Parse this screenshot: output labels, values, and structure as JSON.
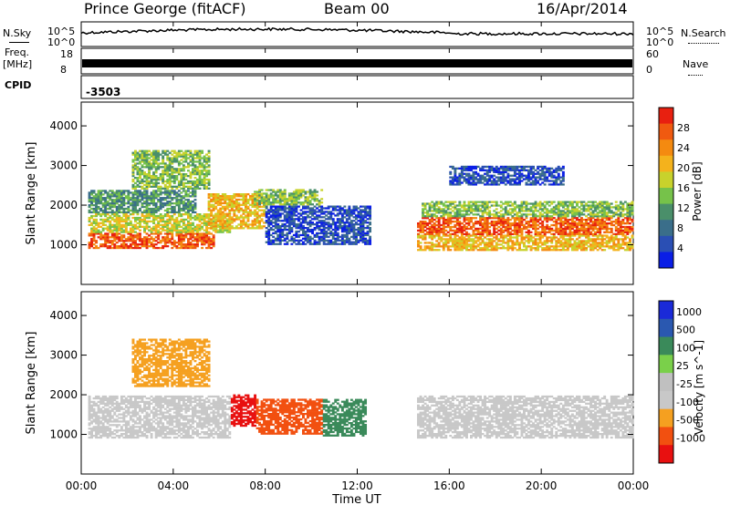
{
  "header": {
    "station": "Prince George (fitACF)",
    "beam": "Beam 00",
    "date": "16/Apr/2014"
  },
  "top_panels": {
    "nsky_label": "N.Sky",
    "nsearch_label": "N.Search",
    "noise_ticks_left": [
      "10^5",
      "10^0"
    ],
    "noise_ticks_right": [
      "10^5",
      "10^0"
    ],
    "freq_label_1": "Freq.",
    "freq_label_2": "[MHz]",
    "freq_ticks": [
      "18",
      "8"
    ],
    "nave_label": "Nave",
    "nave_ticks": [
      "60",
      "0"
    ],
    "cpid_label": "CPID",
    "cpid_value": "-3503"
  },
  "colors": {
    "power": [
      "#0a1ee6",
      "#2a4fb4",
      "#3a6e8a",
      "#4a8f6a",
      "#76c24a",
      "#c8d22c",
      "#f4b21c",
      "#f48a10",
      "#f05a10",
      "#e82010"
    ],
    "velocity": [
      "#e81010",
      "#f25010",
      "#f5a020",
      "#c8c8c8",
      "#c0c0c0",
      "#7ad04a",
      "#3a8a5a",
      "#2a58b0",
      "#1a2ad8"
    ]
  },
  "chart_data": [
    {
      "type": "heatmap",
      "name": "power",
      "ylabel": "Slant Range [km]",
      "ylim": [
        0,
        4600
      ],
      "yticks": [
        "1000",
        "2000",
        "3000",
        "4000"
      ],
      "colorbar_label": "Power [dB]",
      "colorbar_ticks": [
        "4",
        "8",
        "12",
        "16",
        "20",
        "24",
        "28"
      ],
      "x_hours": [
        0,
        24
      ],
      "echo_bands": [
        {
          "t0": 0.3,
          "t1": 5.8,
          "r0": 900,
          "r1": 1300,
          "level": 8
        },
        {
          "t0": 0.3,
          "t1": 6.5,
          "r0": 1300,
          "r1": 1800,
          "level": 5
        },
        {
          "t0": 0.3,
          "t1": 5.0,
          "r0": 1800,
          "r1": 2400,
          "level": 3
        },
        {
          "t0": 2.2,
          "t1": 5.6,
          "r0": 2400,
          "r1": 3400,
          "level": 4
        },
        {
          "t0": 5.5,
          "t1": 8.0,
          "r0": 1400,
          "r1": 2300,
          "level": 6
        },
        {
          "t0": 7.5,
          "t1": 10.5,
          "r0": 2000,
          "r1": 2400,
          "level": 4
        },
        {
          "t0": 8.0,
          "t1": 12.6,
          "r0": 1000,
          "r1": 2000,
          "level": 1
        },
        {
          "t0": 14.6,
          "t1": 24.0,
          "r0": 850,
          "r1": 1250,
          "level": 6
        },
        {
          "t0": 14.6,
          "t1": 24.0,
          "r0": 1250,
          "r1": 1700,
          "level": 8
        },
        {
          "t0": 14.8,
          "t1": 24.0,
          "r0": 1700,
          "r1": 2100,
          "level": 4
        },
        {
          "t0": 16.0,
          "t1": 21.0,
          "r0": 2500,
          "r1": 3000,
          "level": 1
        }
      ]
    },
    {
      "type": "heatmap",
      "name": "velocity",
      "ylabel": "Slant Range [km]",
      "ylim": [
        0,
        4600
      ],
      "yticks": [
        "1000",
        "2000",
        "3000",
        "4000"
      ],
      "colorbar_label": "Velocity [m s^-1]",
      "colorbar_ticks": [
        "1000",
        "500",
        "100",
        "25",
        "-25",
        "-100",
        "-500",
        "-1000"
      ],
      "xticks": [
        "00:00",
        "04:00",
        "08:00",
        "12:00",
        "16:00",
        "20:00",
        "00:00"
      ],
      "xlabel": "Time UT",
      "x_hours": [
        0,
        24
      ],
      "echo_bands": [
        {
          "t0": 0.3,
          "t1": 6.5,
          "r0": 900,
          "r1": 2000,
          "level": 3
        },
        {
          "t0": 2.2,
          "t1": 5.6,
          "r0": 2200,
          "r1": 3400,
          "level": 2
        },
        {
          "t0": 6.5,
          "t1": 7.6,
          "r0": 1200,
          "r1": 2000,
          "level": 0
        },
        {
          "t0": 7.6,
          "t1": 10.5,
          "r0": 1000,
          "r1": 1900,
          "level": 1
        },
        {
          "t0": 10.5,
          "t1": 12.4,
          "r0": 950,
          "r1": 1900,
          "level": 6
        },
        {
          "t0": 14.6,
          "t1": 24.0,
          "r0": 900,
          "r1": 2000,
          "level": 3
        }
      ]
    }
  ]
}
